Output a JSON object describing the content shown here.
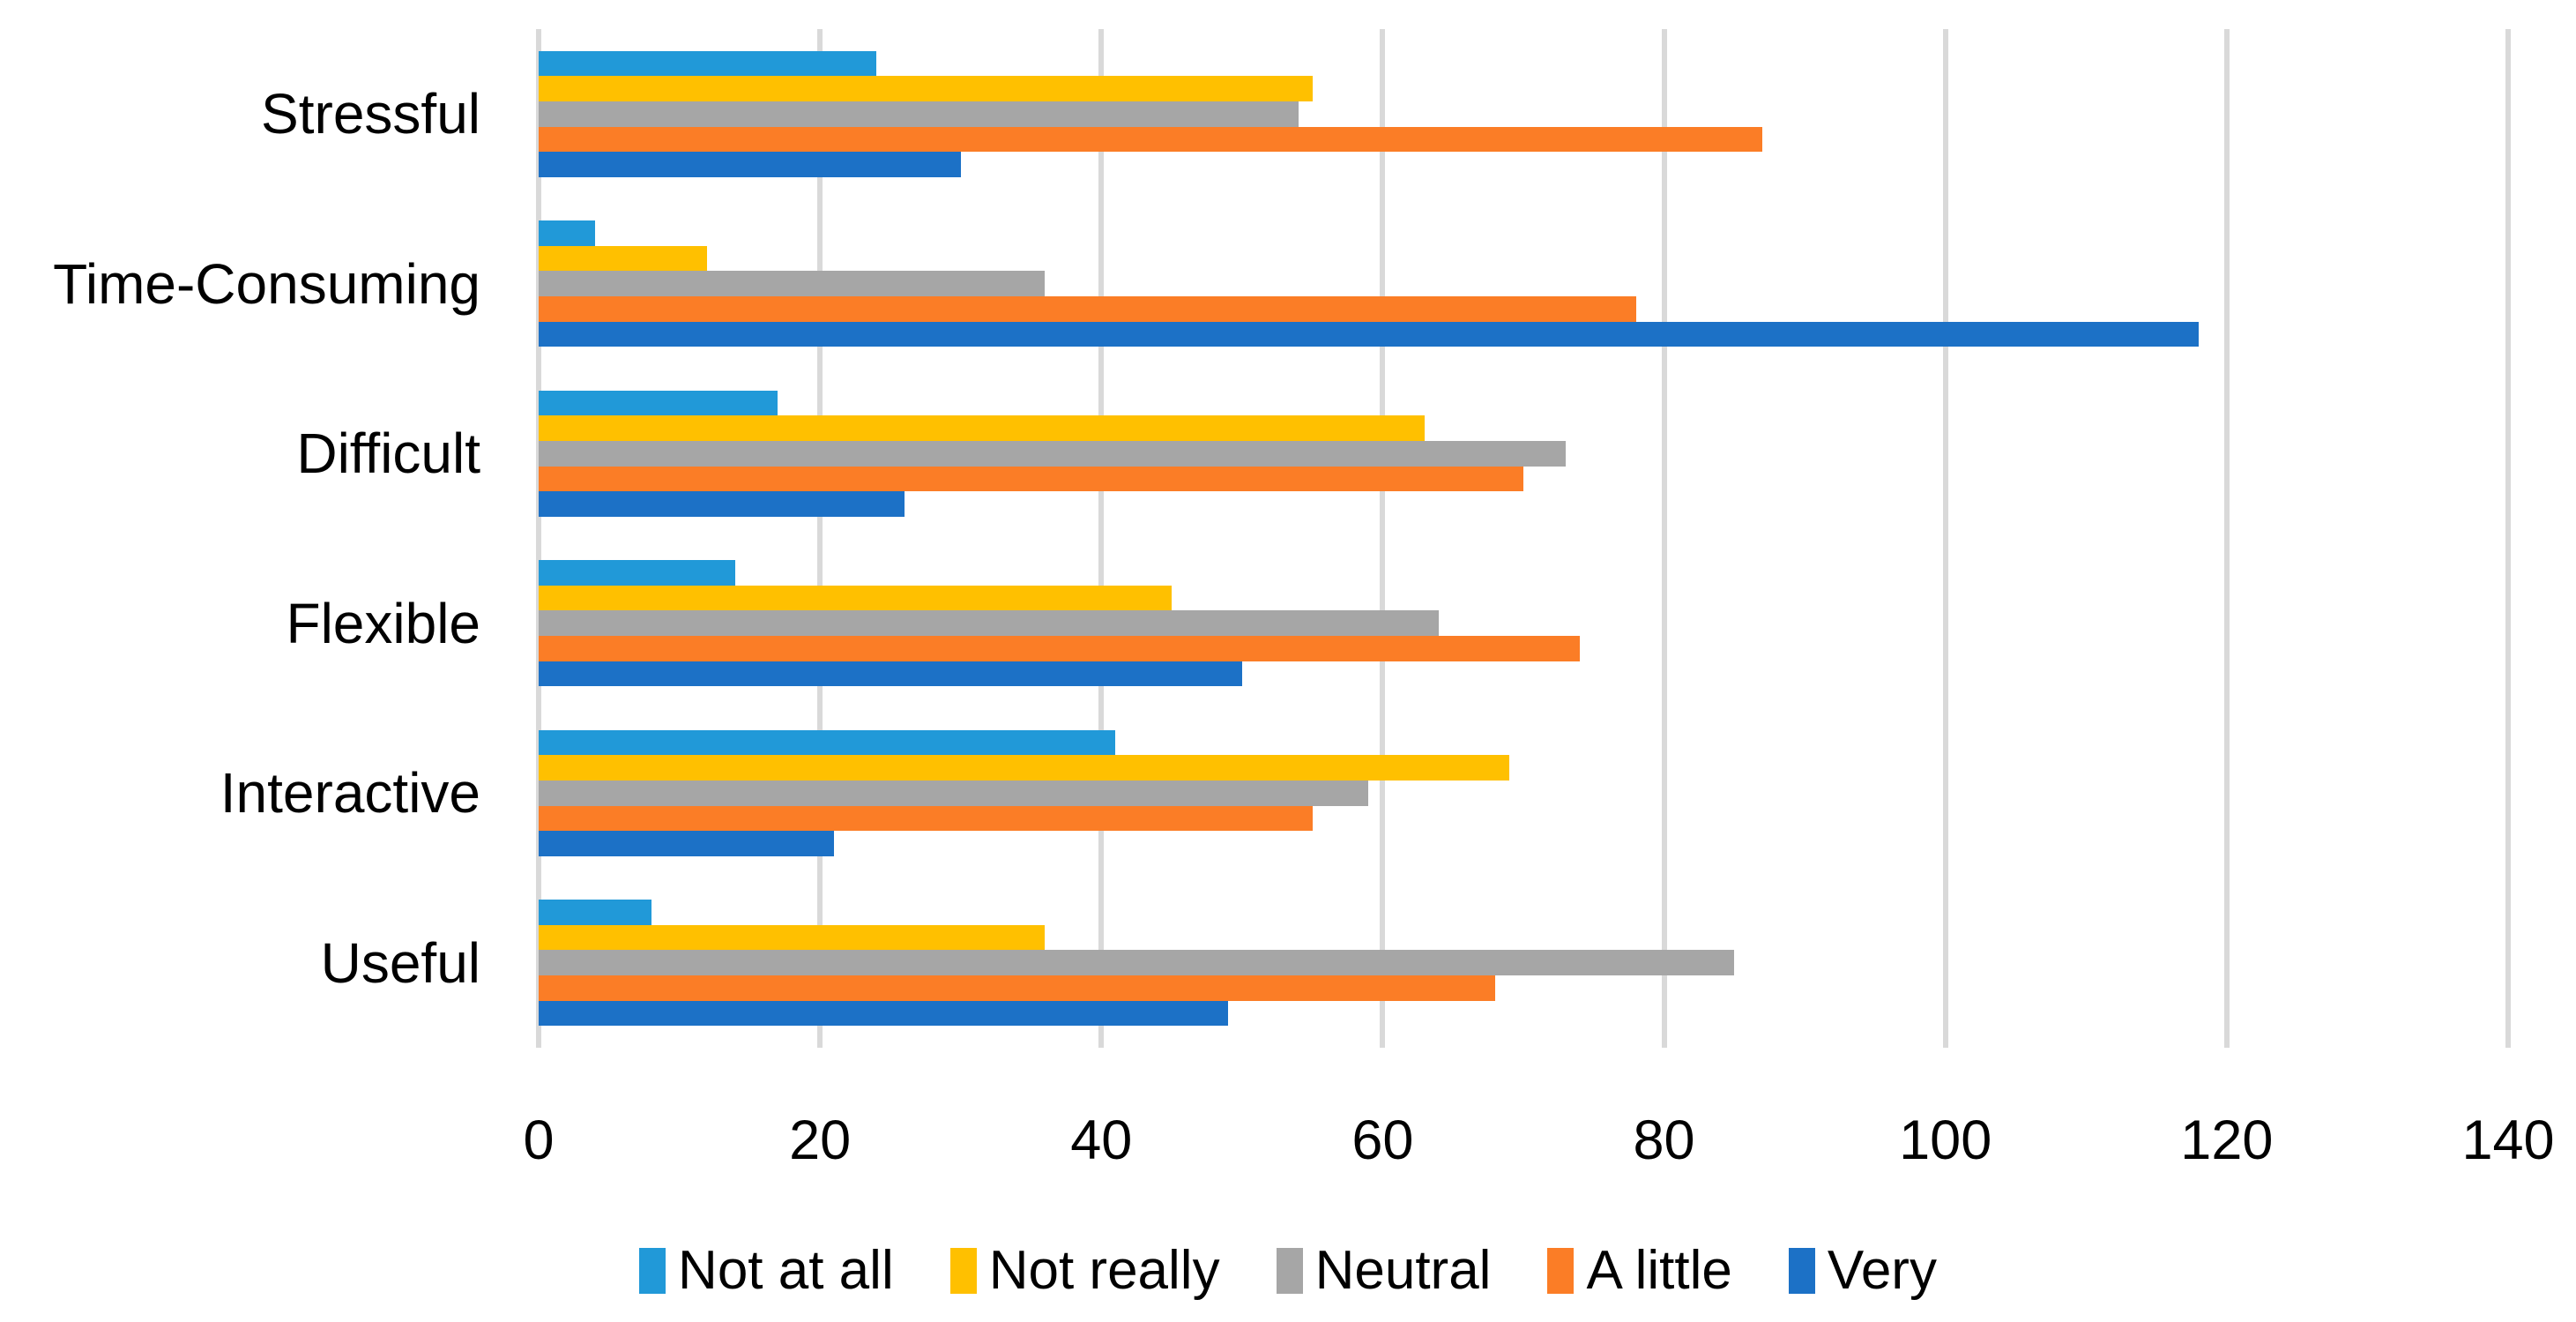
{
  "chart_data": {
    "type": "bar",
    "orientation": "horizontal",
    "title": "",
    "xlabel": "",
    "ylabel": "",
    "categories": [
      "Stressful",
      "Time-Consuming",
      "Difficult",
      "Flexible",
      "Interactive",
      "Useful"
    ],
    "series": [
      {
        "name": "Not at all",
        "color": "#2199D8",
        "values": [
          24,
          4,
          17,
          14,
          41,
          8
        ]
      },
      {
        "name": "Not really",
        "color": "#FFC000",
        "values": [
          55,
          12,
          63,
          45,
          69,
          36
        ]
      },
      {
        "name": "Neutral",
        "color": "#A6A6A6",
        "values": [
          54,
          36,
          73,
          64,
          59,
          85
        ]
      },
      {
        "name": "A little",
        "color": "#FB7D26",
        "values": [
          87,
          78,
          70,
          74,
          55,
          68
        ]
      },
      {
        "name": "Very",
        "color": "#1C71C6",
        "values": [
          30,
          118,
          26,
          50,
          21,
          49
        ]
      }
    ],
    "xlim": [
      0,
      140
    ],
    "xticks": [
      0,
      20,
      40,
      60,
      80,
      100,
      120,
      140
    ],
    "grid": "vertical-only",
    "gridline_color": "#D9D9D9",
    "background_color": "#FFFFFF",
    "text_color": "#000000",
    "legend_position": "bottom-center",
    "legend_labels": [
      "Not at all",
      "Not really",
      "Neutral",
      "A little",
      "Very"
    ]
  }
}
